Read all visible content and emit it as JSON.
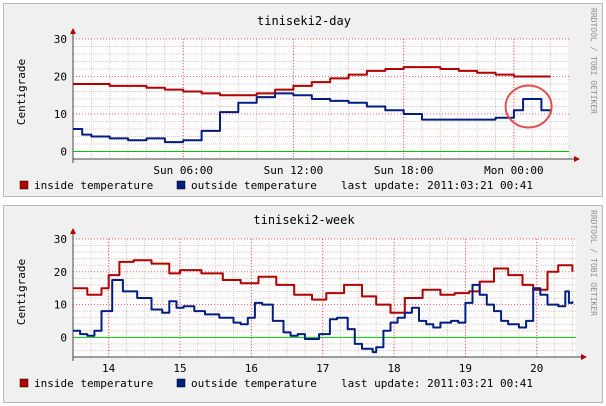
{
  "colors": {
    "inside": "#b20000",
    "outside": "#001e80",
    "zero": "#00c800",
    "grid_major": "#ff0000",
    "grid_minor": "#e6c8c8",
    "canvas": "#ffffff",
    "annotation": "#e05050"
  },
  "watermark": "RRDTOOL / TOBI OETIKER",
  "legend": {
    "inside_label": "inside temperature",
    "outside_label": "outside temperature",
    "last_update": "last update: 2011:03:21 00:41"
  },
  "chart_data": [
    {
      "type": "line",
      "title": "tiniseki2-day",
      "ylabel": "Centigrade",
      "xlabel": "",
      "ylim": [
        -2,
        30
      ],
      "yticks": [
        0,
        10,
        20,
        30
      ],
      "xlim": [
        0,
        27
      ],
      "xticks": [
        {
          "x": 6,
          "label": "Sun 06:00"
        },
        {
          "x": 12,
          "label": "Sun 12:00"
        },
        {
          "x": 18,
          "label": "Sun 18:00"
        },
        {
          "x": 24,
          "label": "Mon 00:00"
        }
      ],
      "x_unit": "hours since Sat 21:00",
      "grid": true,
      "annotation": {
        "type": "circle",
        "note": "highlighted last-hour outside temperature rise"
      },
      "series": [
        {
          "name": "inside temperature",
          "key": "inside",
          "x": [
            0,
            2,
            4,
            5,
            6,
            7,
            8,
            9,
            10,
            11,
            12,
            13,
            14,
            15,
            16,
            17,
            18,
            19,
            20,
            21,
            22,
            23,
            24,
            25,
            26
          ],
          "y": [
            18,
            17.5,
            17,
            16.5,
            16,
            15.5,
            15,
            15,
            15.5,
            16.5,
            17.5,
            18.5,
            19.5,
            20.5,
            21.5,
            22,
            22.5,
            22.5,
            22,
            21.5,
            21,
            20.5,
            20,
            20,
            20
          ]
        },
        {
          "name": "outside temperature",
          "key": "outside",
          "x": [
            0,
            0.5,
            1,
            2,
            3,
            4,
            5,
            6,
            7,
            8,
            9,
            10,
            11,
            12,
            13,
            14,
            15,
            16,
            17,
            18,
            19,
            20,
            21,
            22,
            23,
            24,
            24.5,
            25,
            25.5,
            26
          ],
          "y": [
            6,
            4.5,
            4,
            3.5,
            3,
            3.5,
            2.5,
            3,
            5.5,
            10.5,
            13,
            14.5,
            15.5,
            15,
            14,
            13.5,
            13,
            12,
            11,
            10,
            8.5,
            8.5,
            8.5,
            8.5,
            9,
            11,
            14,
            14,
            11,
            10
          ]
        }
      ]
    },
    {
      "type": "line",
      "title": "tiniseki2-week",
      "ylabel": "Centigrade",
      "xlabel": "",
      "ylim": [
        -6,
        30
      ],
      "yticks": [
        0,
        10,
        20,
        30
      ],
      "xlim": [
        13.5,
        20.55
      ],
      "xticks": [
        {
          "x": 14,
          "label": "14"
        },
        {
          "x": 15,
          "label": "15"
        },
        {
          "x": 16,
          "label": "16"
        },
        {
          "x": 17,
          "label": "17"
        },
        {
          "x": 18,
          "label": "18"
        },
        {
          "x": 19,
          "label": "19"
        },
        {
          "x": 20,
          "label": "20"
        }
      ],
      "x_unit": "day of month",
      "grid": true,
      "series": [
        {
          "name": "inside temperature",
          "key": "inside",
          "x": [
            13.5,
            13.7,
            13.9,
            14.0,
            14.15,
            14.35,
            14.6,
            14.85,
            15.0,
            15.3,
            15.6,
            15.85,
            16.1,
            16.2,
            16.35,
            16.6,
            16.85,
            17.05,
            17.3,
            17.55,
            17.75,
            17.95,
            18.15,
            18.4,
            18.65,
            18.85,
            19.05,
            19.2,
            19.4,
            19.6,
            19.8,
            19.95,
            20.15,
            20.3,
            20.5
          ],
          "y": [
            15,
            13,
            15,
            19,
            23,
            23.5,
            22.5,
            19.5,
            20.5,
            19.5,
            17.5,
            16.5,
            18.5,
            18.5,
            16,
            13,
            11.5,
            13.5,
            16,
            12.5,
            10,
            7.5,
            12,
            14.5,
            13,
            13.5,
            14,
            17,
            21,
            19,
            16,
            14.5,
            20,
            22,
            20
          ]
        },
        {
          "name": "outside temperature",
          "key": "outside",
          "x": [
            13.5,
            13.6,
            13.7,
            13.8,
            13.9,
            14.05,
            14.2,
            14.4,
            14.6,
            14.75,
            14.85,
            14.95,
            15.05,
            15.2,
            15.35,
            15.55,
            15.75,
            15.85,
            15.95,
            16.05,
            16.15,
            16.3,
            16.45,
            16.55,
            16.65,
            16.75,
            16.85,
            16.95,
            17.1,
            17.2,
            17.35,
            17.45,
            17.55,
            17.7,
            17.75,
            17.85,
            17.95,
            18.05,
            18.15,
            18.25,
            18.35,
            18.45,
            18.55,
            18.65,
            18.8,
            18.9,
            19.0,
            19.1,
            19.2,
            19.3,
            19.4,
            19.5,
            19.6,
            19.75,
            19.85,
            19.95,
            20.05,
            20.15,
            20.3,
            20.4,
            20.45,
            20.5
          ],
          "y": [
            2,
            1,
            0.5,
            2,
            8,
            17.5,
            14,
            12,
            8.5,
            7.5,
            11,
            9,
            9.5,
            8,
            7,
            6,
            4.5,
            4,
            6,
            10.5,
            10,
            5,
            1.5,
            0.5,
            1,
            -0.5,
            -0.5,
            1,
            5.5,
            6,
            2.5,
            -2,
            -3.5,
            -4.5,
            -3,
            2,
            4.5,
            6,
            7.5,
            9,
            5,
            4,
            3,
            4.5,
            5,
            4.5,
            10.5,
            16,
            13,
            10,
            8,
            5,
            4,
            3,
            5,
            15,
            13,
            10,
            9.5,
            14,
            10.5,
            11
          ]
        }
      ]
    }
  ]
}
